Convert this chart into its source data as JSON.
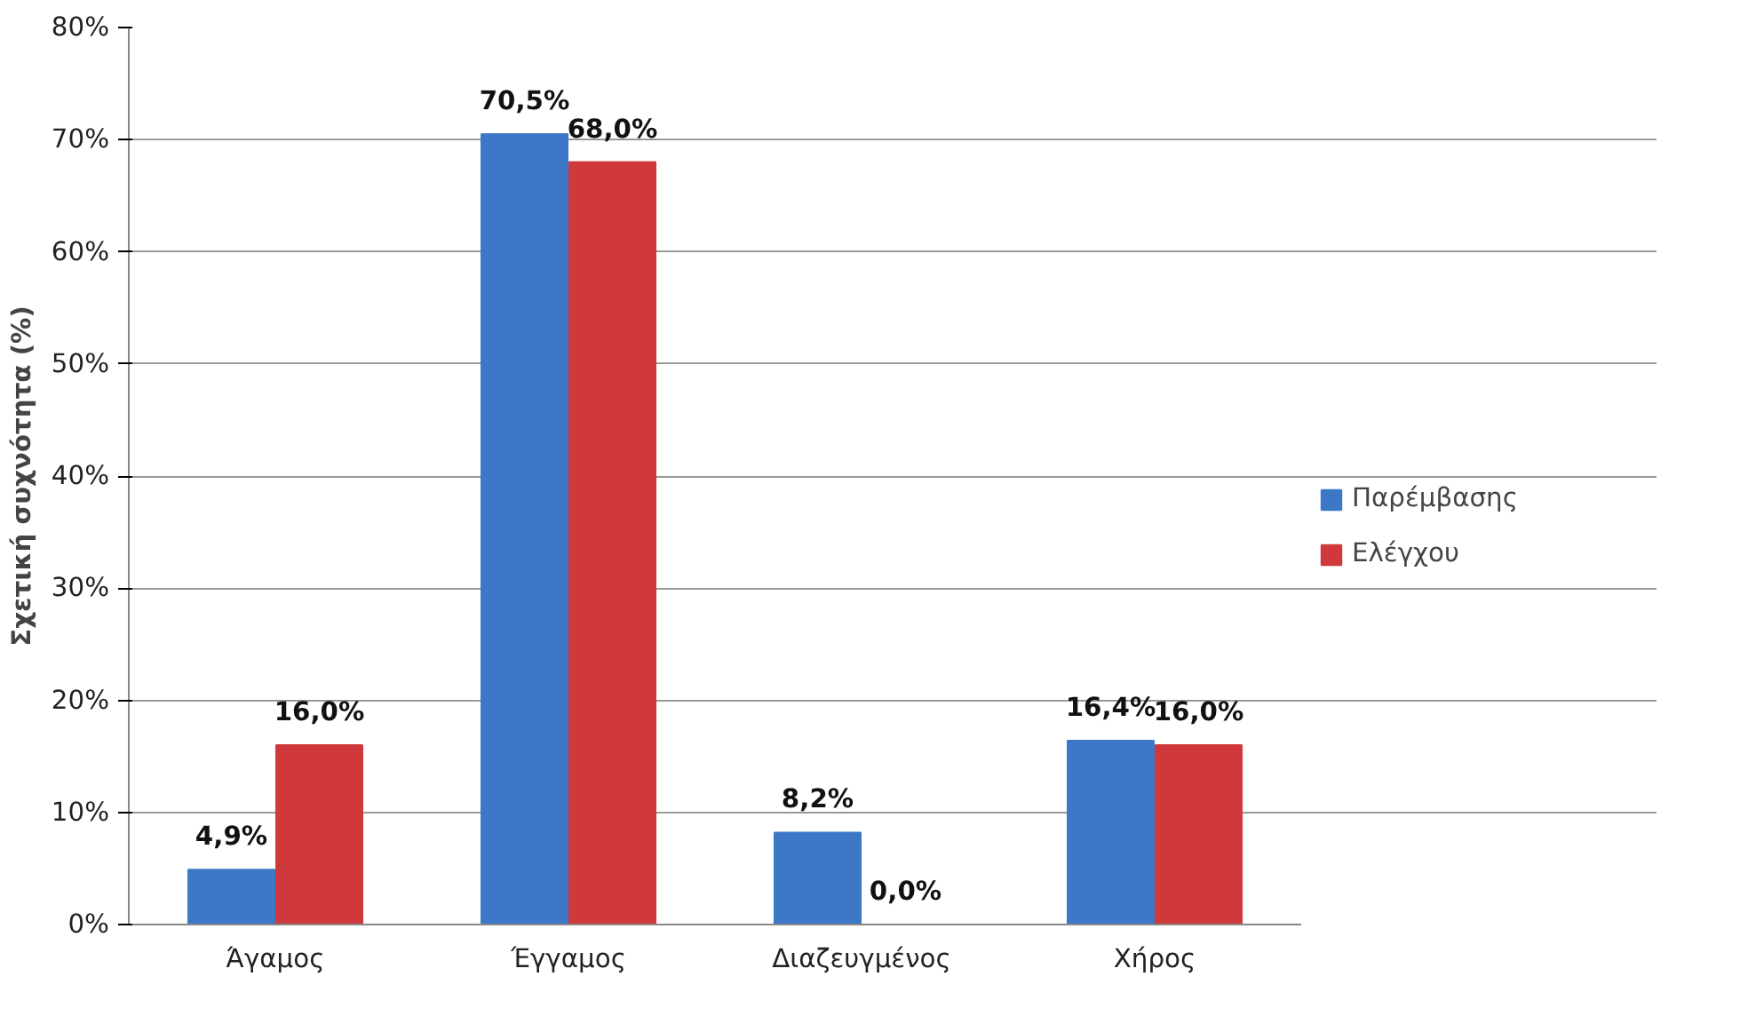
{
  "chart_data": {
    "type": "bar",
    "ylabel": "Σχετική συχνότητα (%)",
    "categories": [
      "Άγαμος",
      "Έγγαμος",
      "Διαζευγμένος",
      "Χήρος"
    ],
    "series": [
      {
        "name": "Παρέμβασης",
        "color": "#3d78c8",
        "values": [
          4.9,
          70.5,
          8.2,
          16.4
        ],
        "value_labels": [
          "4,9%",
          "70,5%",
          "8,2%",
          "16,4%"
        ]
      },
      {
        "name": "Ελέγχου",
        "color": "#d0393b",
        "values": [
          16.0,
          68.0,
          0.0,
          16.0
        ],
        "value_labels": [
          "16,0%",
          "68,0%",
          "0,0%",
          "16,0%"
        ]
      }
    ],
    "ylim": [
      0,
      80
    ],
    "yticks": [
      {
        "value": 0,
        "label": "0%"
      },
      {
        "value": 10,
        "label": "10%"
      },
      {
        "value": 20,
        "label": "20%"
      },
      {
        "value": 30,
        "label": "30%"
      },
      {
        "value": 40,
        "label": "40%"
      },
      {
        "value": 50,
        "label": "50%"
      },
      {
        "value": 60,
        "label": "60%"
      },
      {
        "value": 70,
        "label": "70%"
      },
      {
        "value": 80,
        "label": "80%"
      }
    ],
    "grid": "y",
    "legend": "right"
  }
}
